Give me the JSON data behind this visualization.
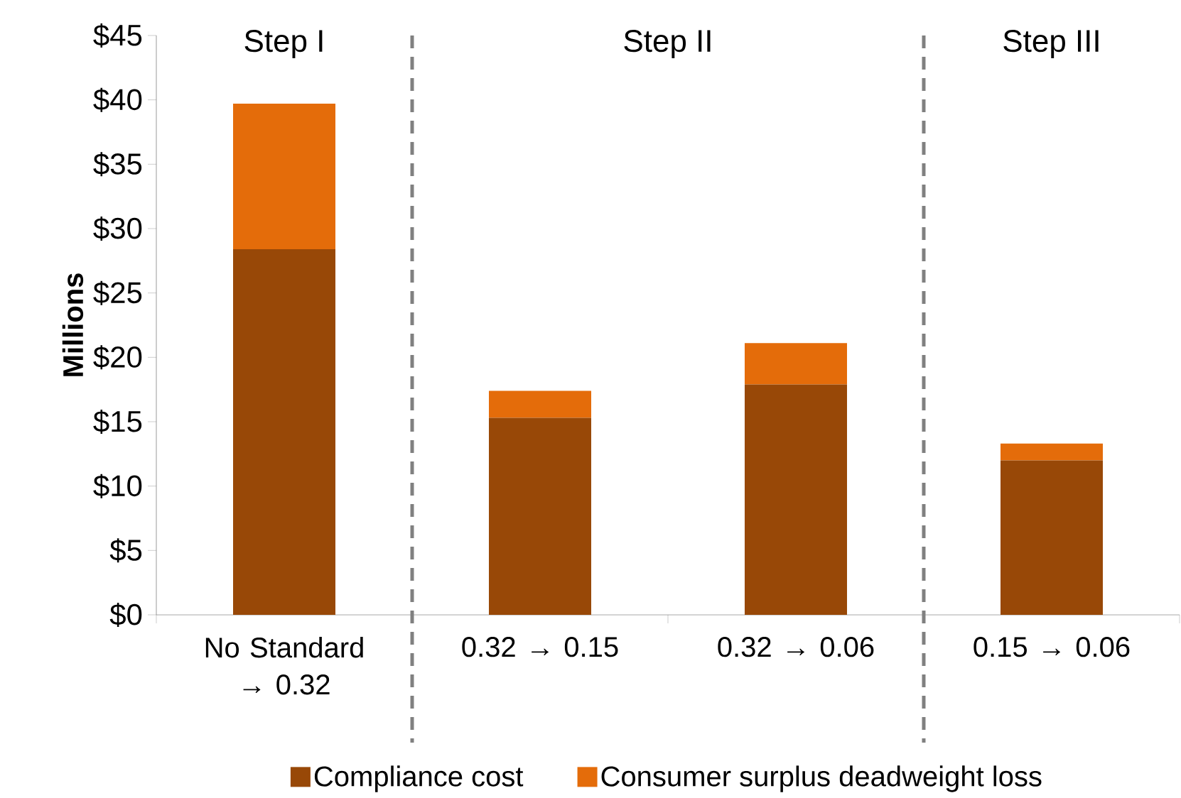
{
  "chart_data": {
    "type": "bar",
    "stacked": true,
    "ylabel": "Millions",
    "categories": [
      "No Standard → 0.32",
      "0.32 → 0.15",
      "0.32 → 0.06",
      "0.15 → 0.06"
    ],
    "series": [
      {
        "name": "Compliance cost",
        "color": "#984807",
        "values": [
          28.4,
          15.3,
          17.9,
          12.0
        ]
      },
      {
        "name": "Consumer surplus deadweight loss",
        "color": "#e46c0a",
        "values": [
          11.3,
          2.1,
          3.2,
          1.3
        ]
      }
    ],
    "ylim": [
      0,
      45
    ],
    "yticks": [
      {
        "value": 0,
        "label": "$0"
      },
      {
        "value": 5,
        "label": "$5"
      },
      {
        "value": 10,
        "label": "$10"
      },
      {
        "value": 15,
        "label": "$15"
      },
      {
        "value": 20,
        "label": "$20"
      },
      {
        "value": 25,
        "label": "$25"
      },
      {
        "value": 30,
        "label": "$30"
      },
      {
        "value": 35,
        "label": "$35"
      },
      {
        "value": 40,
        "label": "$40"
      },
      {
        "value": 45,
        "label": "$45"
      }
    ],
    "annotations": [
      "Step I",
      "Step II",
      "Step III"
    ],
    "grid": false,
    "legend": "bottom"
  }
}
